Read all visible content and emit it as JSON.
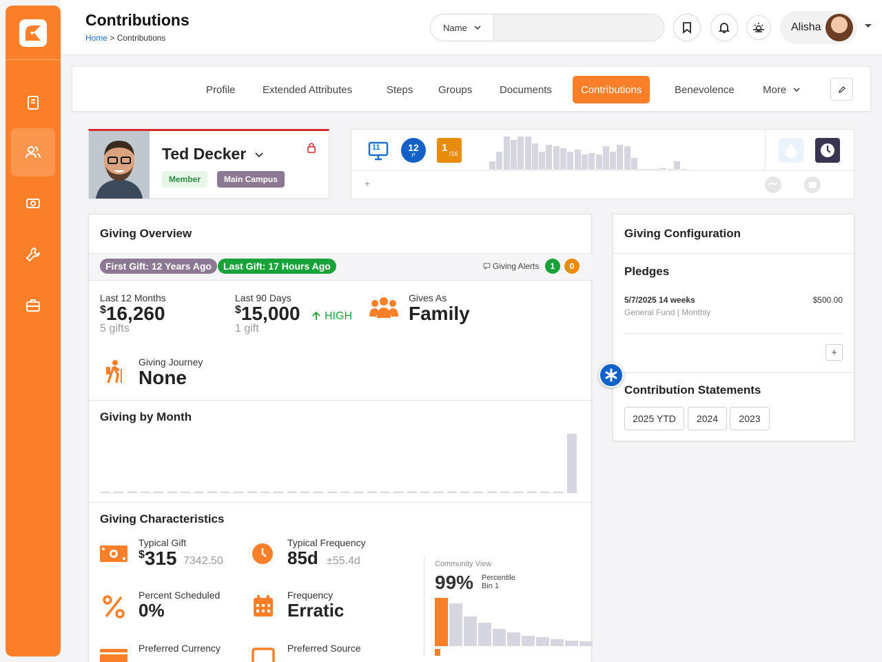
{
  "header": {
    "title": "Contributions",
    "breadcrumb_home": "Home",
    "breadcrumb_separator": ">",
    "breadcrumb_current": "Contributions"
  },
  "search": {
    "scope": "Name",
    "value": "",
    "placeholder": ""
  },
  "user": {
    "name": "Alisha"
  },
  "tabs": [
    {
      "label": "Profile"
    },
    {
      "label": "Extended Attributes"
    },
    {
      "label": "Steps"
    },
    {
      "label": "Groups"
    },
    {
      "label": "Documents"
    },
    {
      "label": "Contributions"
    },
    {
      "label": "Benevolence"
    },
    {
      "label": "More"
    }
  ],
  "active_tab": "Contributions",
  "person": {
    "name": "Ted Decker",
    "badges": [
      "Member",
      "Main Campus"
    ]
  },
  "badge_bar": {
    "badge_number_1": "11",
    "years_value": "12",
    "years_unit": "yr",
    "fraction_num": "1",
    "fraction_den": "/16",
    "add_label": "+",
    "activity_levels": [
      0.25,
      0.55,
      1,
      0.9,
      1,
      1,
      0.8,
      0.55,
      0.75,
      0.7,
      0.65,
      0.55,
      0.6,
      0.45,
      0.5,
      0.45,
      0.7,
      0.55,
      0.75,
      0.7,
      0.35,
      0,
      0,
      0,
      0.05,
      0,
      0.25,
      0
    ]
  },
  "giving_overview": {
    "title": "Giving Overview",
    "first_gift": "First Gift: 12 Years Ago",
    "last_gift": "Last Gift: 17 Hours Ago",
    "alerts_label": "Giving Alerts",
    "alerts_green": "1",
    "alerts_orange": "0",
    "last12_label": "Last 12 Months",
    "last12_currency": "$",
    "last12_value": "16,260",
    "last12_sub": "5 gifts",
    "last90_label": "Last 90 Days",
    "last90_currency": "$",
    "last90_value": "15,000",
    "last90_sub": "1 gift",
    "trend_label": "HIGH",
    "gives_as_label": "Gives As",
    "gives_as_value": "Family",
    "journey_label": "Giving Journey",
    "journey_value": "None"
  },
  "giving_by_month": {
    "title": "Giving by Month",
    "chart_data": {
      "type": "bar",
      "values": [
        0,
        0,
        0,
        0,
        0,
        0,
        0,
        0,
        0,
        0,
        0,
        0,
        0,
        0,
        0,
        0,
        0,
        0,
        0,
        0,
        0,
        0,
        0,
        0,
        0,
        0,
        0,
        0,
        0,
        0,
        0,
        0,
        0,
        0,
        0,
        1
      ]
    }
  },
  "giving_characteristics": {
    "title": "Giving Characteristics",
    "typical_gift_label": "Typical Gift",
    "typical_gift_currency": "$",
    "typical_gift_value": "315",
    "typical_gift_sub": "7342.50",
    "typical_freq_label": "Typical Frequency",
    "typical_freq_value": "85d",
    "typical_freq_sub": "±55.4d",
    "pct_scheduled_label": "Percent Scheduled",
    "pct_scheduled_value": "0%",
    "frequency_label": "Frequency",
    "frequency_value": "Erratic",
    "pref_currency_label": "Preferred Currency",
    "pref_source_label": "Preferred Source",
    "community_view_label": "Community View",
    "percentile_value": "99%",
    "percentile_label": "Percentile",
    "bin_label": "Bin 1",
    "chart_data": {
      "type": "bar",
      "values": [
        1,
        0.88,
        0.62,
        0.48,
        0.36,
        0.28,
        0.22,
        0.18,
        0.15,
        0.12,
        0.1
      ]
    }
  },
  "giving_config": {
    "title": "Giving Configuration",
    "pledges_title": "Pledges",
    "pledge_date": "5/7/2025 14 weeks",
    "pledge_amount": "$500.00",
    "pledge_fund": "General Fund",
    "pledge_sep": "|",
    "pledge_freq": "Monthly",
    "add_label": "+",
    "statements_title": "Contribution Statements",
    "statements": [
      "2025 YTD",
      "2024",
      "2023"
    ]
  },
  "colors": {
    "primary": "#fb7f28",
    "success": "#17a33a",
    "warning": "#e88c0b",
    "info": "#1b6fc9",
    "danger": "#d62b2b"
  }
}
